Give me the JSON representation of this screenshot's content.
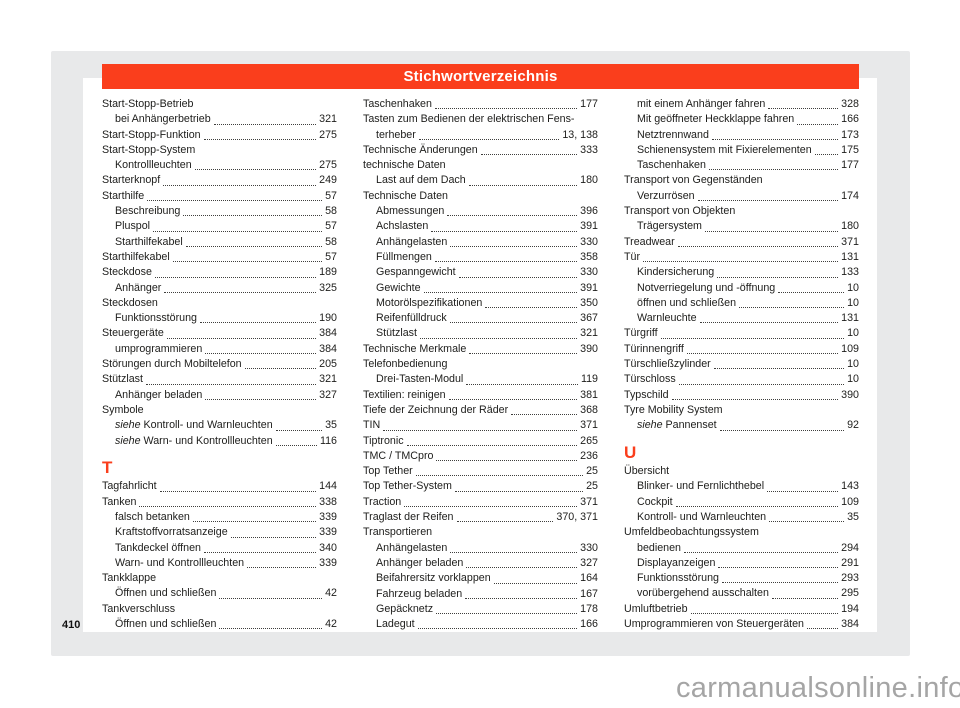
{
  "page": {
    "title": "Stichwortverzeichnis",
    "page_number": "410",
    "watermark": "carmanualsonline.info",
    "accent_color": "#fa3e1c",
    "panel_color": "#e8e9ea",
    "text_color": "#1d1d1b"
  },
  "index": {
    "columns": [
      {
        "items": [
          {
            "t": "h",
            "label": "Start-Stopp-Betrieb"
          },
          {
            "t": "e",
            "ind": 1,
            "label": "bei Anhängerbetrieb",
            "page": "321"
          },
          {
            "t": "e",
            "label": "Start-Stopp-Funktion",
            "page": "275"
          },
          {
            "t": "h",
            "label": "Start-Stopp-System"
          },
          {
            "t": "e",
            "ind": 1,
            "label": "Kontrollleuchten",
            "page": "275"
          },
          {
            "t": "e",
            "label": "Starterknopf",
            "page": "249"
          },
          {
            "t": "e",
            "label": "Starthilfe",
            "page": "57"
          },
          {
            "t": "e",
            "ind": 1,
            "label": "Beschreibung",
            "page": "58"
          },
          {
            "t": "e",
            "ind": 1,
            "label": "Pluspol",
            "page": "57"
          },
          {
            "t": "e",
            "ind": 1,
            "label": "Starthilfekabel",
            "page": "58"
          },
          {
            "t": "e",
            "label": "Starthilfekabel",
            "page": "57"
          },
          {
            "t": "e",
            "label": "Steckdose",
            "page": "189"
          },
          {
            "t": "e",
            "ind": 1,
            "label": "Anhänger",
            "page": "325"
          },
          {
            "t": "h",
            "label": "Steckdosen"
          },
          {
            "t": "e",
            "ind": 1,
            "label": "Funktionsstörung",
            "page": "190"
          },
          {
            "t": "e",
            "label": "Steuergeräte",
            "page": "384"
          },
          {
            "t": "e",
            "ind": 1,
            "label": "umprogrammieren",
            "page": "384"
          },
          {
            "t": "e",
            "label": "Störungen durch Mobiltelefon",
            "page": "205"
          },
          {
            "t": "e",
            "label": "Stützlast",
            "page": "321"
          },
          {
            "t": "e",
            "ind": 1,
            "label": "Anhänger beladen",
            "page": "327"
          },
          {
            "t": "h",
            "label": "Symbole"
          },
          {
            "t": "e",
            "ind": 1,
            "em": 1,
            "label": "siehe Kontroll- und Warnleuchten",
            "page": "35"
          },
          {
            "t": "e",
            "ind": 1,
            "em": 1,
            "label": "siehe Warn- und Kontrollleuchten",
            "page": "116"
          },
          {
            "t": "s",
            "label": "T"
          },
          {
            "t": "e",
            "label": "Tagfahrlicht",
            "page": "144"
          },
          {
            "t": "e",
            "label": "Tanken",
            "page": "338"
          },
          {
            "t": "e",
            "ind": 1,
            "label": "falsch betanken",
            "page": "339"
          },
          {
            "t": "e",
            "ind": 1,
            "label": "Kraftstoffvorratsanzeige",
            "page": "339"
          },
          {
            "t": "e",
            "ind": 1,
            "label": "Tankdeckel öffnen",
            "page": "340"
          },
          {
            "t": "e",
            "ind": 1,
            "label": "Warn- und Kontrollleuchten",
            "page": "339"
          },
          {
            "t": "h",
            "label": "Tankklappe"
          },
          {
            "t": "e",
            "ind": 1,
            "label": "Öffnen und schließen",
            "page": "42"
          },
          {
            "t": "h",
            "label": "Tankverschluss"
          },
          {
            "t": "e",
            "ind": 1,
            "label": "Öffnen und schließen",
            "page": "42"
          }
        ]
      },
      {
        "items": [
          {
            "t": "e",
            "label": "Taschenhaken",
            "page": "177"
          },
          {
            "t": "w",
            "label": "Tasten zum Bedienen der elektrischen Fens-"
          },
          {
            "t": "e",
            "ind": 1,
            "label": "terheber",
            "page": "13, 138"
          },
          {
            "t": "e",
            "label": "Technische Änderungen",
            "page": "333"
          },
          {
            "t": "h",
            "label": "technische Daten"
          },
          {
            "t": "e",
            "ind": 1,
            "label": "Last auf dem Dach",
            "page": "180"
          },
          {
            "t": "h",
            "label": "Technische Daten"
          },
          {
            "t": "e",
            "ind": 1,
            "label": "Abmessungen",
            "page": "396"
          },
          {
            "t": "e",
            "ind": 1,
            "label": "Achslasten",
            "page": "391"
          },
          {
            "t": "e",
            "ind": 1,
            "label": "Anhängelasten",
            "page": "330"
          },
          {
            "t": "e",
            "ind": 1,
            "label": "Füllmengen",
            "page": "358"
          },
          {
            "t": "e",
            "ind": 1,
            "label": "Gespanngewicht",
            "page": "330"
          },
          {
            "t": "e",
            "ind": 1,
            "label": "Gewichte",
            "page": "391"
          },
          {
            "t": "e",
            "ind": 1,
            "label": "Motorölspezifikationen",
            "page": "350"
          },
          {
            "t": "e",
            "ind": 1,
            "label": "Reifenfülldruck",
            "page": "367"
          },
          {
            "t": "e",
            "ind": 1,
            "label": "Stützlast",
            "page": "321"
          },
          {
            "t": "e",
            "label": "Technische Merkmale",
            "page": "390"
          },
          {
            "t": "h",
            "label": "Telefonbedienung"
          },
          {
            "t": "e",
            "ind": 1,
            "label": "Drei-Tasten-Modul",
            "page": "119"
          },
          {
            "t": "e",
            "label": "Textilien: reinigen",
            "page": "381"
          },
          {
            "t": "e",
            "label": "Tiefe der Zeichnung der Räder",
            "page": "368"
          },
          {
            "t": "e",
            "label": "TIN",
            "page": "371"
          },
          {
            "t": "e",
            "label": "Tiptronic",
            "page": "265"
          },
          {
            "t": "e",
            "label": "TMC / TMCpro",
            "page": "236"
          },
          {
            "t": "e",
            "label": "Top Tether",
            "page": "25"
          },
          {
            "t": "e",
            "label": "Top Tether-System",
            "page": "25"
          },
          {
            "t": "e",
            "label": "Traction",
            "page": "371"
          },
          {
            "t": "e",
            "label": "Traglast der Reifen",
            "page": "370, 371"
          },
          {
            "t": "h",
            "label": "Transportieren"
          },
          {
            "t": "e",
            "ind": 1,
            "label": "Anhängelasten",
            "page": "330"
          },
          {
            "t": "e",
            "ind": 1,
            "label": "Anhänger beladen",
            "page": "327"
          },
          {
            "t": "e",
            "ind": 1,
            "label": "Beifahrersitz vorklappen",
            "page": "164"
          },
          {
            "t": "e",
            "ind": 1,
            "label": "Fahrzeug beladen",
            "page": "167"
          },
          {
            "t": "e",
            "ind": 1,
            "label": "Gepäcknetz",
            "page": "178"
          },
          {
            "t": "e",
            "ind": 1,
            "label": "Ladegut",
            "page": "166"
          }
        ]
      },
      {
        "items": [
          {
            "t": "e",
            "ind": 1,
            "label": "mit einem Anhänger fahren",
            "page": "328"
          },
          {
            "t": "e",
            "ind": 1,
            "label": "Mit geöffneter Heckklappe fahren",
            "page": "166"
          },
          {
            "t": "e",
            "ind": 1,
            "label": "Netztrennwand",
            "page": "173"
          },
          {
            "t": "e",
            "ind": 1,
            "label": "Schienensystem mit Fixierelementen",
            "page": "175"
          },
          {
            "t": "e",
            "ind": 1,
            "label": "Taschenhaken",
            "page": "177"
          },
          {
            "t": "h",
            "label": "Transport von Gegenständen"
          },
          {
            "t": "e",
            "ind": 1,
            "label": "Verzurrösen",
            "page": "174"
          },
          {
            "t": "h",
            "label": "Transport von Objekten"
          },
          {
            "t": "e",
            "ind": 1,
            "label": "Trägersystem",
            "page": "180"
          },
          {
            "t": "e",
            "label": "Treadwear",
            "page": "371"
          },
          {
            "t": "e",
            "label": "Tür",
            "page": "131"
          },
          {
            "t": "e",
            "ind": 1,
            "label": "Kindersicherung",
            "page": "133"
          },
          {
            "t": "e",
            "ind": 1,
            "label": "Notverriegelung und -öffnung",
            "page": "10"
          },
          {
            "t": "e",
            "ind": 1,
            "label": "öffnen und schließen",
            "page": "10"
          },
          {
            "t": "e",
            "ind": 1,
            "label": "Warnleuchte",
            "page": "131"
          },
          {
            "t": "e",
            "label": "Türgriff",
            "page": "10"
          },
          {
            "t": "e",
            "label": "Türinnengriff",
            "page": "109"
          },
          {
            "t": "e",
            "label": "Türschließzylinder",
            "page": "10"
          },
          {
            "t": "e",
            "label": "Türschloss",
            "page": "10"
          },
          {
            "t": "e",
            "label": "Typschild",
            "page": "390"
          },
          {
            "t": "h",
            "label": "Tyre Mobility System"
          },
          {
            "t": "e",
            "ind": 1,
            "em": 1,
            "label": "siehe Pannenset",
            "page": "92"
          },
          {
            "t": "s",
            "label": "U"
          },
          {
            "t": "h",
            "label": "Übersicht"
          },
          {
            "t": "e",
            "ind": 1,
            "label": "Blinker- und Fernlichthebel",
            "page": "143"
          },
          {
            "t": "e",
            "ind": 1,
            "label": "Cockpit",
            "page": "109"
          },
          {
            "t": "e",
            "ind": 1,
            "label": "Kontroll- und Warnleuchten",
            "page": "35"
          },
          {
            "t": "h",
            "label": "Umfeldbeobachtungssystem"
          },
          {
            "t": "e",
            "ind": 1,
            "label": "bedienen",
            "page": "294"
          },
          {
            "t": "e",
            "ind": 1,
            "label": "Displayanzeigen",
            "page": "291"
          },
          {
            "t": "e",
            "ind": 1,
            "label": "Funktionsstörung",
            "page": "293"
          },
          {
            "t": "e",
            "ind": 1,
            "label": "vorübergehend ausschalten",
            "page": "295"
          },
          {
            "t": "e",
            "label": "Umluftbetrieb",
            "page": "194"
          },
          {
            "t": "e",
            "label": "Umprogrammieren von Steuergeräten",
            "page": "384"
          }
        ]
      }
    ]
  }
}
